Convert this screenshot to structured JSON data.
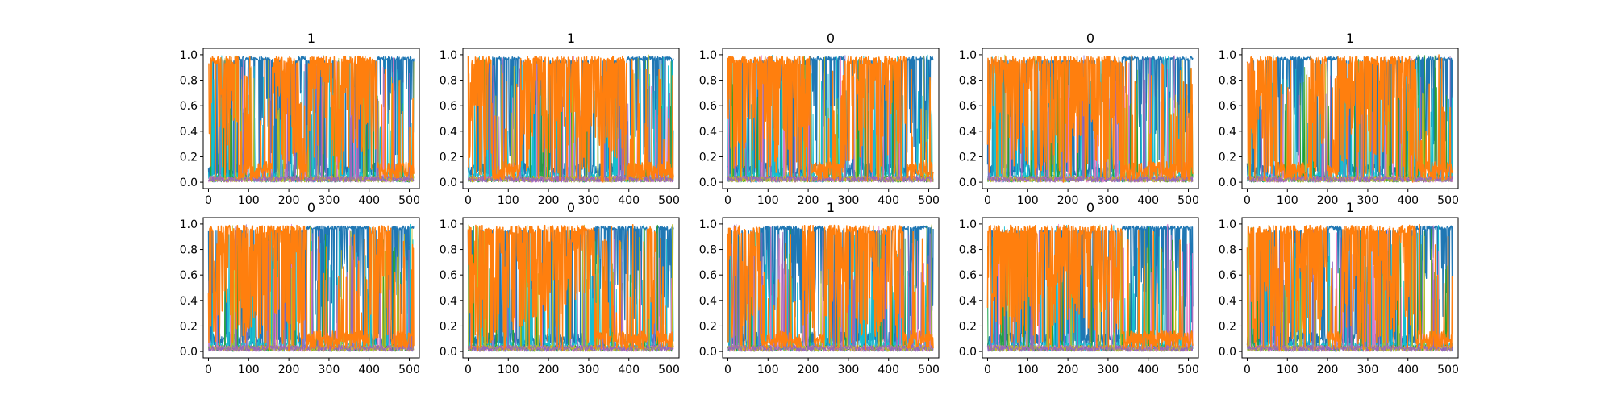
{
  "chart_data": {
    "type": "line",
    "layout": {
      "rows": 2,
      "cols": 5
    },
    "palette": [
      "#1f77b4",
      "#ff7f0e",
      "#2ca02c",
      "#d62728",
      "#9467bd",
      "#8c564b",
      "#e377c2",
      "#7f7f7f",
      "#bcbd22",
      "#17becf"
    ],
    "xlim": [
      -13,
      525
    ],
    "ylim": [
      -0.05,
      1.05
    ],
    "xticks": [
      0,
      100,
      200,
      300,
      400,
      500
    ],
    "yticks": [
      0.0,
      0.2,
      0.4,
      0.6,
      0.8,
      1.0
    ],
    "xtick_labels": [
      "0",
      "100",
      "200",
      "300",
      "400",
      "500"
    ],
    "ytick_labels": [
      "0.0",
      "0.2",
      "0.4",
      "0.6",
      "0.8",
      "1.0"
    ],
    "n_points": 512,
    "panels": [
      {
        "title": "1",
        "blue_regions": [
          [
            75,
            160
          ],
          [
            225,
            245
          ],
          [
            420,
            512
          ]
        ]
      },
      {
        "title": "1",
        "blue_regions": [
          [
            60,
            130
          ],
          [
            395,
            512
          ]
        ]
      },
      {
        "title": "0",
        "blue_regions": [
          [
            205,
            290
          ],
          [
            445,
            512
          ]
        ]
      },
      {
        "title": "0",
        "blue_regions": [
          [
            335,
            512
          ]
        ]
      },
      {
        "title": "1",
        "blue_regions": [
          [
            75,
            160
          ],
          [
            200,
            225
          ],
          [
            420,
            512
          ]
        ]
      },
      {
        "title": "0",
        "blue_regions": [
          [
            245,
            400
          ],
          [
            455,
            512
          ]
        ]
      },
      {
        "title": "0",
        "blue_regions": [
          [
            315,
            445
          ],
          [
            470,
            512
          ]
        ]
      },
      {
        "title": "1",
        "blue_regions": [
          [
            80,
            185
          ],
          [
            215,
            240
          ],
          [
            435,
            512
          ]
        ]
      },
      {
        "title": "0",
        "blue_regions": [
          [
            335,
            512
          ]
        ]
      },
      {
        "title": "1",
        "blue_regions": [
          [
            200,
            235
          ],
          [
            420,
            512
          ]
        ]
      }
    ]
  }
}
